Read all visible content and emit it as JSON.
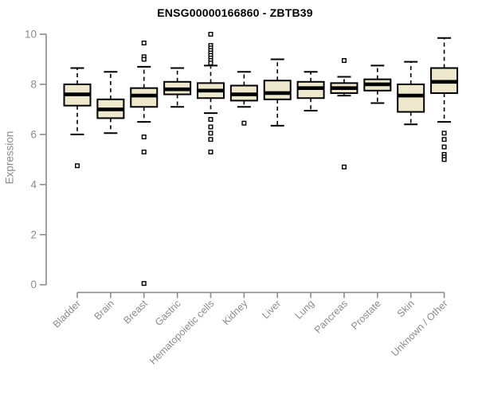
{
  "chart_data": {
    "type": "boxplot",
    "title": "ENSG00000166860 - ZBTB39",
    "ylabel": "Expression",
    "xlabel": "",
    "ylim": [
      0,
      10
    ],
    "yticks": [
      0,
      2,
      4,
      6,
      8,
      10
    ],
    "grid": false,
    "legend": "none",
    "box_fill": "#EEE8CD",
    "box_stroke": "#000000",
    "axis_color": "#8b8b8b",
    "categories": [
      "Bladder",
      "Brain",
      "Breast",
      "Gastric",
      "Hematopoietic cells",
      "Kidney",
      "Liver",
      "Lung",
      "Pancreas",
      "Prostate",
      "Skin",
      "Unknown / Other"
    ],
    "series": [
      {
        "category": "Bladder",
        "low": 6.0,
        "q1": 7.15,
        "median": 7.6,
        "q3": 8.0,
        "high": 8.65,
        "outliers": [
          4.75
        ]
      },
      {
        "category": "Brain",
        "low": 6.05,
        "q1": 6.65,
        "median": 7.0,
        "q3": 7.4,
        "high": 8.5,
        "outliers": []
      },
      {
        "category": "Breast",
        "low": 6.5,
        "q1": 7.1,
        "median": 7.55,
        "q3": 7.85,
        "high": 8.7,
        "outliers": [
          9.65,
          9.1,
          9.0,
          5.9,
          5.3,
          0.05
        ]
      },
      {
        "category": "Gastric",
        "low": 7.1,
        "q1": 7.6,
        "median": 7.8,
        "q3": 8.1,
        "high": 8.65,
        "outliers": []
      },
      {
        "category": "Hematopoietic cells",
        "low": 6.85,
        "q1": 7.45,
        "median": 7.75,
        "q3": 8.05,
        "high": 8.75,
        "outliers": [
          10.0,
          9.55,
          9.45,
          9.35,
          9.25,
          9.15,
          9.05,
          8.95,
          8.85,
          6.6,
          6.3,
          6.05,
          5.8,
          5.3
        ]
      },
      {
        "category": "Kidney",
        "low": 7.1,
        "q1": 7.35,
        "median": 7.6,
        "q3": 7.95,
        "high": 8.5,
        "outliers": [
          6.45
        ]
      },
      {
        "category": "Liver",
        "low": 6.35,
        "q1": 7.4,
        "median": 7.65,
        "q3": 8.15,
        "high": 9.0,
        "outliers": []
      },
      {
        "category": "Lung",
        "low": 6.95,
        "q1": 7.45,
        "median": 7.85,
        "q3": 8.1,
        "high": 8.5,
        "outliers": []
      },
      {
        "category": "Pancreas",
        "low": 7.55,
        "q1": 7.65,
        "median": 7.85,
        "q3": 8.05,
        "high": 8.3,
        "outliers": [
          8.95,
          4.7
        ]
      },
      {
        "category": "Prostate",
        "low": 7.25,
        "q1": 7.75,
        "median": 8.0,
        "q3": 8.2,
        "high": 8.75,
        "outliers": []
      },
      {
        "category": "Skin",
        "low": 6.4,
        "q1": 6.9,
        "median": 7.55,
        "q3": 8.0,
        "high": 8.9,
        "outliers": []
      },
      {
        "category": "Unknown / Other",
        "low": 6.5,
        "q1": 7.65,
        "median": 8.1,
        "q3": 8.65,
        "high": 9.85,
        "outliers": [
          6.05,
          5.8,
          5.5,
          5.2,
          5.1,
          5.0
        ]
      }
    ]
  }
}
